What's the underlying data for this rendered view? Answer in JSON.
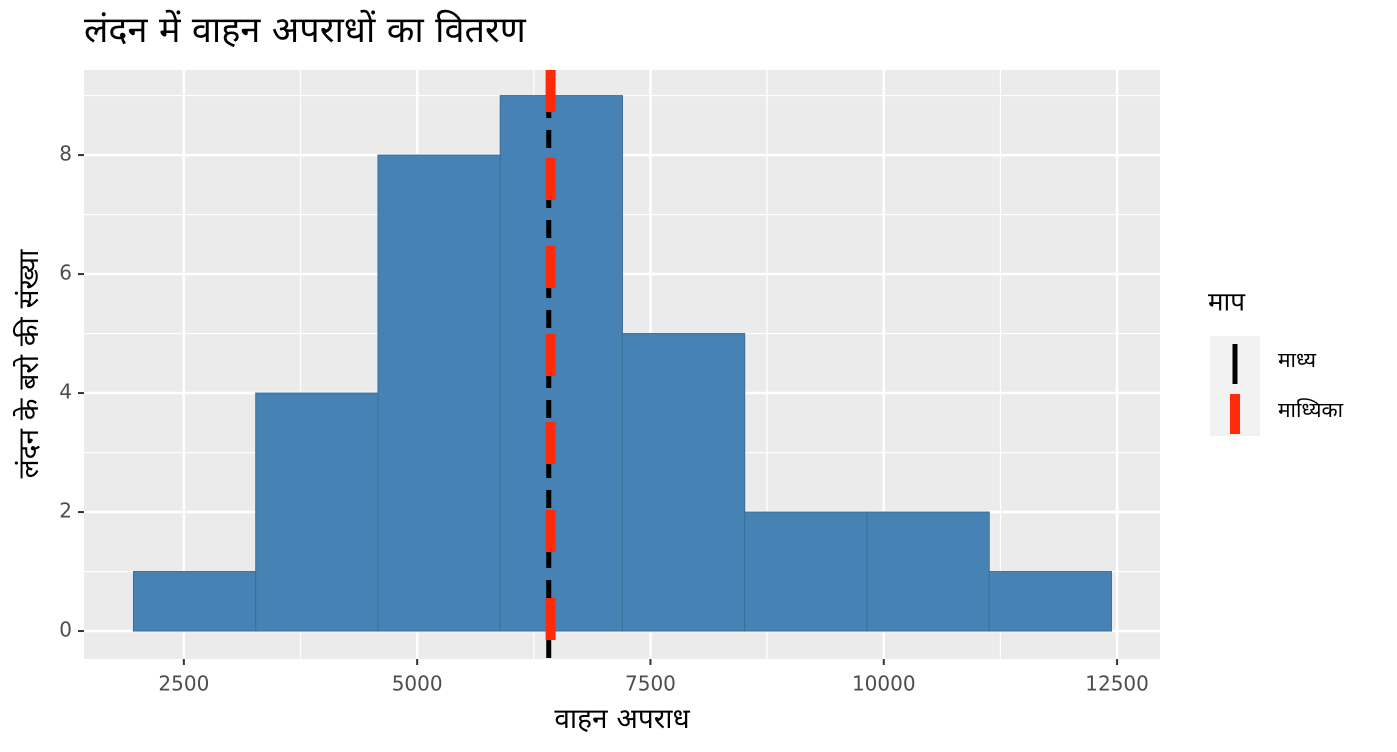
{
  "chart_data": {
    "type": "histogram",
    "title": "लंदन में वाहन अपराधों का वितरण",
    "x_label": "वाहन अपराध",
    "y_label": "लंदन के बरो की संख्या",
    "bins": [
      1960,
      3270,
      4580,
      5890,
      7200,
      8510,
      9820,
      11130,
      12440
    ],
    "values": [
      1,
      4,
      8,
      9,
      5,
      2,
      2,
      1
    ],
    "color": "#4682b4",
    "xlim": [
      1430,
      12960
    ],
    "ylim": [
      -0.47,
      9.43
    ],
    "xticks": [
      2500,
      5000,
      7500,
      10000,
      12500
    ],
    "yticks": [
      0,
      2,
      4,
      6,
      8
    ],
    "x_minor_ticks": [
      3750,
      6250,
      8750,
      11250
    ],
    "y_minor_ticks": [
      1,
      3,
      5,
      7,
      9
    ],
    "grid": true,
    "legend_title": "माप",
    "reference_lines": [
      {
        "name": "माध्य",
        "value": 6410,
        "color": "#000000"
      },
      {
        "name": "माध्यिका",
        "value": 6430,
        "color": "#ff2a0a"
      }
    ]
  }
}
